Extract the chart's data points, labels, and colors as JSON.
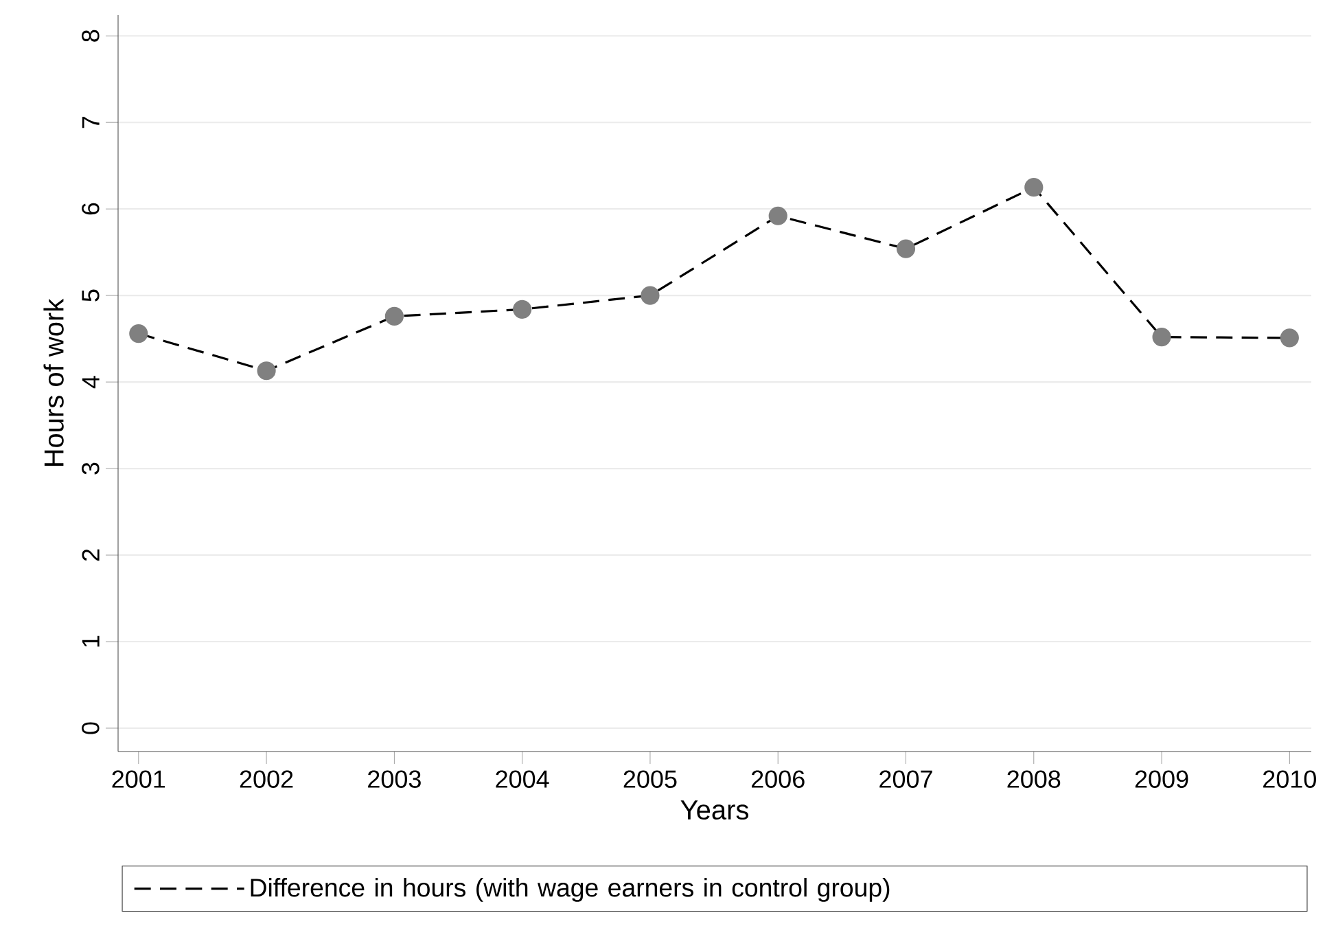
{
  "chart_data": {
    "type": "line",
    "xlabel": "Years",
    "ylabel": "Hours of work",
    "x": [
      2001,
      2002,
      2003,
      2004,
      2005,
      2006,
      2007,
      2008,
      2009,
      2010
    ],
    "series": [
      {
        "name": "Difference in hours (with wage earners in control group)",
        "color": "#000000",
        "values": [
          4.56,
          4.13,
          4.76,
          4.84,
          5.0,
          5.92,
          5.54,
          6.25,
          4.52,
          4.51
        ]
      }
    ],
    "xlim": [
      2000.84,
      2010.17
    ],
    "ylim": [
      -0.27,
      8.24
    ],
    "xticks": [
      2001,
      2002,
      2003,
      2004,
      2005,
      2006,
      2007,
      2008,
      2009,
      2010
    ],
    "yticks": [
      0,
      1,
      2,
      3,
      4,
      5,
      6,
      7,
      8
    ],
    "grid": "y",
    "legend": "bottom",
    "marker": "circle",
    "line_style": "dashed"
  }
}
